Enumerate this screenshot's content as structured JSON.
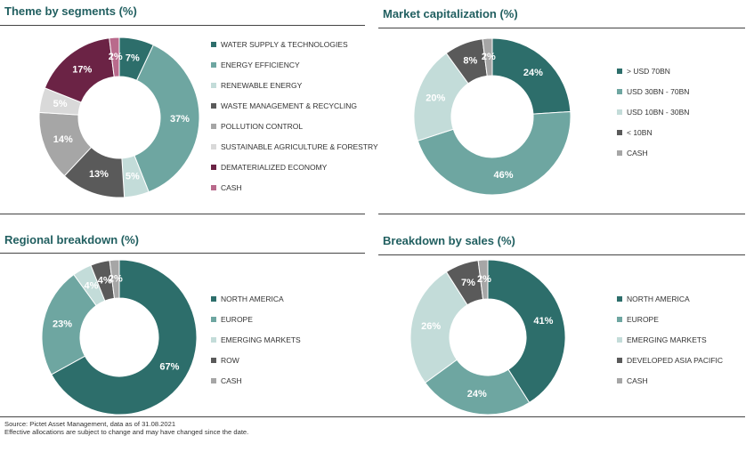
{
  "chart_data": [
    {
      "type": "donut",
      "title": "Theme by segments (%)",
      "categories": [
        "WATER SUPPLY & TECHNOLOGIES",
        "ENERGY EFFICIENCY",
        "RENEWABLE ENERGY",
        "WASTE MANAGEMENT & RECYCLING",
        "POLLUTION CONTROL",
        "SUSTAINABLE AGRICULTURE & FORESTRY",
        "DEMATERIALIZED ECONOMY",
        "CASH"
      ],
      "values": [
        7,
        37,
        5,
        13,
        14,
        5,
        17,
        2
      ],
      "labels": [
        "7%",
        "37%",
        "5%",
        "13%",
        "14%",
        "5%",
        "17%",
        "2%"
      ],
      "colors": [
        "#2d6e6b",
        "#6ea6a1",
        "#c3dcd9",
        "#5a5a5a",
        "#a6a6a6",
        "#d9d9d9",
        "#6b2345",
        "#b96a8c"
      ],
      "label_colors": [
        "#ffffff",
        "#ffffff",
        "#ffffff",
        "#ffffff",
        "#ffffff",
        "#ffffff",
        "#ffffff",
        "#ffffff"
      ]
    },
    {
      "type": "donut",
      "title": "Market capitalization (%)",
      "categories": [
        "> USD 70BN",
        "USD 30BN - 70BN",
        "USD 10BN - 30BN",
        "< 10BN",
        "CASH"
      ],
      "values": [
        24,
        46,
        20,
        8,
        2
      ],
      "labels": [
        "24%",
        "46%",
        "20%",
        "8%",
        "2%"
      ],
      "colors": [
        "#2d6e6b",
        "#6ea6a1",
        "#c3dcd9",
        "#5a5a5a",
        "#a6a6a6"
      ],
      "label_colors": [
        "#ffffff",
        "#ffffff",
        "#ffffff",
        "#ffffff",
        "#ffffff"
      ]
    },
    {
      "type": "donut",
      "title": "Regional breakdown (%)",
      "categories": [
        "NORTH AMERICA",
        "EUROPE",
        "EMERGING MARKETS",
        "ROW",
        "CASH"
      ],
      "values": [
        67,
        23,
        4,
        4,
        2
      ],
      "labels": [
        "67%",
        "23%",
        "4%",
        "4%",
        "2%"
      ],
      "colors": [
        "#2d6e6b",
        "#6ea6a1",
        "#c3dcd9",
        "#5a5a5a",
        "#a6a6a6"
      ],
      "label_colors": [
        "#ffffff",
        "#ffffff",
        "#ffffff",
        "#ffffff",
        "#ffffff"
      ]
    },
    {
      "type": "donut",
      "title": "Breakdown by sales (%)",
      "categories": [
        "NORTH AMERICA",
        "EUROPE",
        "EMERGING MARKETS",
        "DEVELOPED ASIA PACIFIC",
        "CASH"
      ],
      "values": [
        41,
        24,
        26,
        7,
        2
      ],
      "labels": [
        "41%",
        "24%",
        "26%",
        "7%",
        "2%"
      ],
      "colors": [
        "#2d6e6b",
        "#6ea6a1",
        "#c3dcd9",
        "#5a5a5a",
        "#a6a6a6"
      ],
      "label_colors": [
        "#ffffff",
        "#ffffff",
        "#ffffff",
        "#ffffff",
        "#ffffff"
      ]
    }
  ],
  "footer": {
    "source": "Source: Pictet Asset Management, data as of 31.08.2021",
    "note": "Effective allocations are subject to change and may have changed since the date."
  }
}
